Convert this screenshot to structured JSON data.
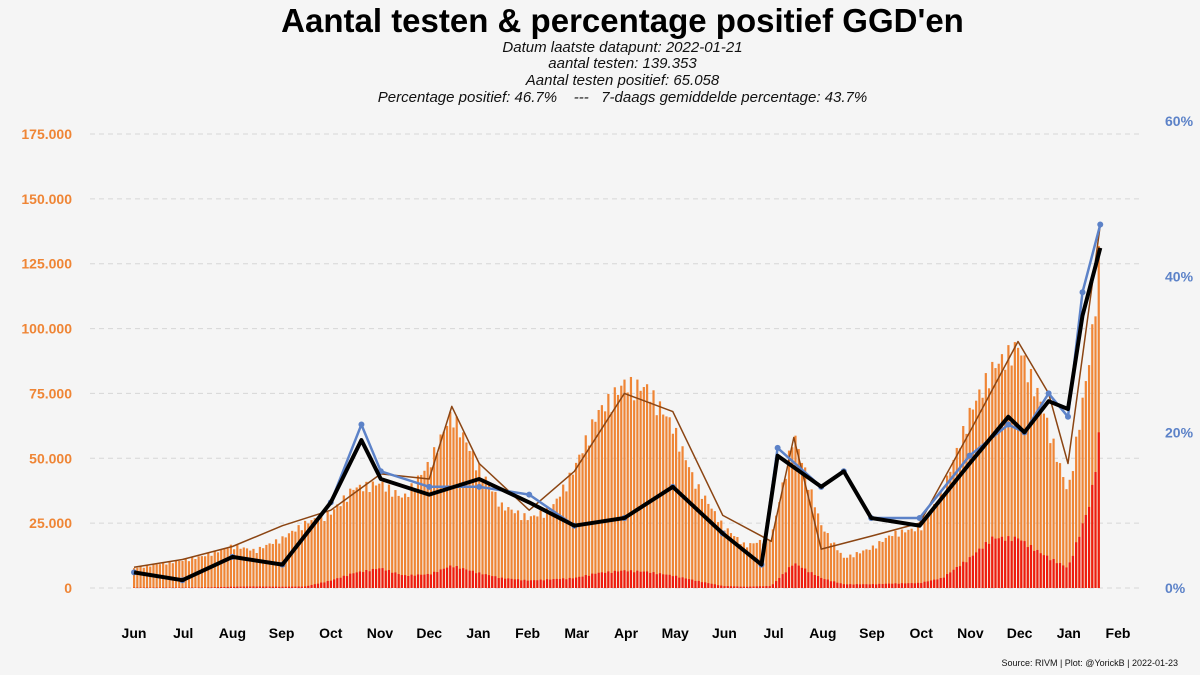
{
  "chart_data": {
    "type": "bar",
    "title": "Aantal testen & percentage positief GGD'en",
    "subtitle": [
      "Datum laatste datapunt: 2022-01-21",
      "aantal testen: 139.353",
      "Aantal testen positief: 65.058",
      "Percentage positief: 46.7%    ---   7-daags gemiddelde percentage: 43.7%"
    ],
    "source": "Source: RIVM | Plot: @YorickB |  2022-01-23",
    "x_ticks": [
      "Jun",
      "Jul",
      "Aug",
      "Sep",
      "Oct",
      "Nov",
      "Dec",
      "Jan",
      "Feb",
      "Mar",
      "Apr",
      "May",
      "Jun",
      "Jul",
      "Aug",
      "Sep",
      "Oct",
      "Nov",
      "Dec",
      "Jan",
      "Feb"
    ],
    "x_range": [
      "2020-06-01",
      "2022-02-01"
    ],
    "y_left_ticks": [
      "0",
      "25.000",
      "50.000",
      "75.000",
      "100.000",
      "125.000",
      "150.000",
      "175.000"
    ],
    "y_left_lim": [
      0,
      175000
    ],
    "y_right_ticks": [
      "0%",
      "20%",
      "40%",
      "60%"
    ],
    "y_right_lim": [
      0,
      60
    ],
    "grid": "horizontal dashed",
    "colors": {
      "tests_bars": "#ef8535",
      "positive_bars": "#ee1c0e",
      "tests_avg_line": "#8b4513",
      "pct_line": "#5c82c8",
      "pct_avg_line": "#000000",
      "left_axis": "#ef8535",
      "right_axis": "#5c82c8"
    },
    "series": [
      {
        "type": "bar",
        "axis": "left",
        "color": "#ef8535",
        "x": [
          "2020-06-01",
          "2020-06-15",
          "2020-07-01",
          "2020-07-15",
          "2020-08-01",
          "2020-08-15",
          "2020-09-01",
          "2020-09-15",
          "2020-10-01",
          "2020-10-15",
          "2020-11-01",
          "2020-11-15",
          "2020-12-01",
          "2020-12-15",
          "2021-01-01",
          "2021-01-15",
          "2021-02-01",
          "2021-02-15",
          "2021-03-01",
          "2021-03-15",
          "2021-04-01",
          "2021-04-15",
          "2021-05-01",
          "2021-05-15",
          "2021-06-01",
          "2021-06-15",
          "2021-07-01",
          "2021-07-15",
          "2021-08-01",
          "2021-08-15",
          "2021-09-01",
          "2021-09-15",
          "2021-10-01",
          "2021-10-15",
          "2021-11-01",
          "2021-11-15",
          "2021-12-01",
          "2021-12-15",
          "2022-01-01",
          "2022-01-15",
          "2022-01-21"
        ],
        "values": [
          8000,
          9500,
          11000,
          13000,
          17000,
          15000,
          20000,
          26000,
          30000,
          40000,
          42000,
          36000,
          50000,
          70000,
          48000,
          33000,
          28000,
          32000,
          48000,
          70000,
          82000,
          80000,
          65000,
          42000,
          25000,
          17000,
          20000,
          62000,
          25000,
          12000,
          16000,
          22000,
          24000,
          38000,
          70000,
          88000,
          97000,
          75000,
          38000,
          95000,
          139353
        ]
      },
      {
        "type": "bar",
        "axis": "left",
        "color": "#ee1c0e",
        "x": [
          "2020-06-01",
          "2020-06-15",
          "2020-07-01",
          "2020-07-15",
          "2020-08-01",
          "2020-08-15",
          "2020-09-01",
          "2020-09-15",
          "2020-10-01",
          "2020-10-15",
          "2020-11-01",
          "2020-11-15",
          "2020-12-01",
          "2020-12-15",
          "2021-01-01",
          "2021-01-15",
          "2021-02-01",
          "2021-02-15",
          "2021-03-01",
          "2021-03-15",
          "2021-04-01",
          "2021-04-15",
          "2021-05-01",
          "2021-05-15",
          "2021-06-01",
          "2021-06-15",
          "2021-07-01",
          "2021-07-15",
          "2021-08-01",
          "2021-08-15",
          "2021-09-01",
          "2021-09-15",
          "2021-10-01",
          "2021-10-15",
          "2021-11-01",
          "2021-11-15",
          "2021-12-01",
          "2021-12-15",
          "2022-01-01",
          "2022-01-15",
          "2022-01-21"
        ],
        "values": [
          150,
          150,
          150,
          200,
          500,
          600,
          500,
          600,
          3000,
          6000,
          8000,
          5000,
          5500,
          9000,
          6000,
          4000,
          3000,
          3500,
          4000,
          6000,
          7000,
          6500,
          5000,
          3000,
          800,
          500,
          800,
          10000,
          4000,
          1500,
          1500,
          1800,
          2000,
          4000,
          12000,
          20000,
          20000,
          14000,
          8000,
          35000,
          65058
        ]
      },
      {
        "type": "line",
        "axis": "left",
        "color": "#8b4513",
        "x": [
          "2020-06-01",
          "2020-07-01",
          "2020-08-01",
          "2020-09-01",
          "2020-10-01",
          "2020-11-01",
          "2020-12-01",
          "2020-12-15",
          "2021-01-01",
          "2021-02-01",
          "2021-03-01",
          "2021-04-01",
          "2021-05-01",
          "2021-06-01",
          "2021-07-01",
          "2021-07-15",
          "2021-08-01",
          "2021-09-01",
          "2021-10-01",
          "2021-11-01",
          "2021-12-01",
          "2021-12-20",
          "2022-01-01",
          "2022-01-21"
        ],
        "values": [
          8000,
          11000,
          16000,
          24000,
          30000,
          44000,
          42000,
          70000,
          48000,
          30000,
          45000,
          75000,
          68000,
          28000,
          18000,
          58000,
          15000,
          20000,
          25000,
          60000,
          95000,
          75000,
          48000,
          140000
        ]
      },
      {
        "type": "line",
        "axis": "right",
        "color": "#5c82c8",
        "x": [
          "2020-06-01",
          "2020-07-01",
          "2020-08-01",
          "2020-09-01",
          "2020-10-01",
          "2020-10-20",
          "2020-11-01",
          "2020-12-01",
          "2021-01-01",
          "2021-02-01",
          "2021-03-01",
          "2021-04-01",
          "2021-05-01",
          "2021-06-01",
          "2021-06-25",
          "2021-07-05",
          "2021-08-01",
          "2021-08-15",
          "2021-09-01",
          "2021-10-01",
          "2021-11-01",
          "2021-11-25",
          "2021-12-05",
          "2021-12-20",
          "2022-01-01",
          "2022-01-10",
          "2022-01-21"
        ],
        "values": [
          2,
          1,
          4,
          3,
          11,
          21,
          15,
          13,
          13,
          12,
          8,
          9,
          13,
          7,
          3,
          18,
          13,
          15,
          9,
          9,
          17,
          21,
          20,
          25,
          22,
          38,
          46.7
        ]
      },
      {
        "type": "line",
        "axis": "right",
        "color": "#000000",
        "x": [
          "2020-06-01",
          "2020-07-01",
          "2020-08-01",
          "2020-09-01",
          "2020-10-01",
          "2020-10-20",
          "2020-11-01",
          "2020-12-01",
          "2021-01-01",
          "2021-02-01",
          "2021-03-01",
          "2021-04-01",
          "2021-05-01",
          "2021-06-01",
          "2021-06-25",
          "2021-07-05",
          "2021-08-01",
          "2021-08-15",
          "2021-09-01",
          "2021-10-01",
          "2021-11-01",
          "2021-11-25",
          "2021-12-05",
          "2021-12-20",
          "2022-01-01",
          "2022-01-10",
          "2022-01-21"
        ],
        "values": [
          2,
          1,
          4,
          3,
          11,
          19,
          14,
          12,
          14,
          11,
          8,
          9,
          13,
          7,
          3,
          17,
          13,
          15,
          9,
          8,
          16,
          22,
          20,
          24,
          23,
          35,
          43.7
        ]
      }
    ]
  }
}
